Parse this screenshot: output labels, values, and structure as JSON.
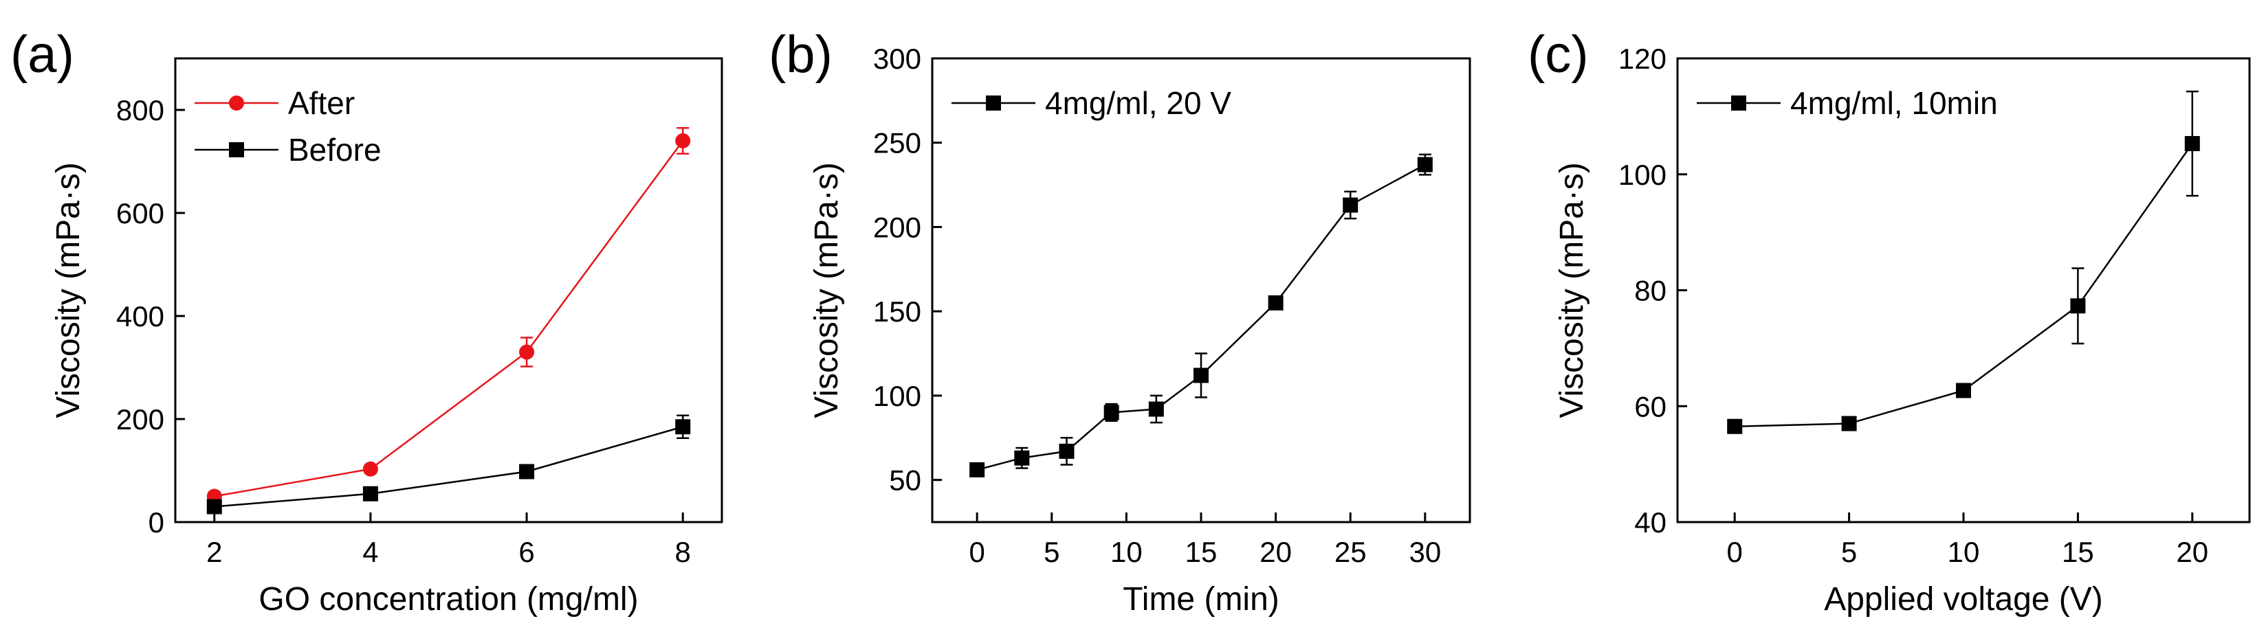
{
  "chart_data": [
    {
      "panel": "(a)",
      "type": "line",
      "xlabel": "GO concentration (mg/ml)",
      "ylabel": "Viscosity (mPa·s)",
      "xlim": [
        1.5,
        8.5
      ],
      "ylim": [
        0,
        900
      ],
      "xticks": [
        2,
        4,
        6,
        8
      ],
      "yticks": [
        0,
        200,
        400,
        600,
        800
      ],
      "x": [
        2,
        4,
        6,
        8
      ],
      "series": [
        {
          "name": "After",
          "color": "#e8141a",
          "marker": "circle",
          "values": [
            50,
            103,
            330,
            740
          ],
          "errors": [
            8,
            8,
            28,
            25
          ]
        },
        {
          "name": "Before",
          "color": "#000000",
          "marker": "square",
          "values": [
            30,
            55,
            98,
            185
          ],
          "errors": [
            5,
            5,
            10,
            22
          ]
        }
      ],
      "legend": "top-left"
    },
    {
      "panel": "(b)",
      "type": "line",
      "xlabel": "Time (min)",
      "ylabel": "Viscosity (mPa·s)",
      "xlim": [
        -3,
        33
      ],
      "ylim": [
        25,
        300
      ],
      "xticks": [
        0,
        5,
        10,
        15,
        20,
        25,
        30
      ],
      "yticks": [
        50,
        100,
        150,
        200,
        250,
        300
      ],
      "x": [
        0,
        3,
        6,
        9,
        12,
        15,
        20,
        25,
        30
      ],
      "series": [
        {
          "name": "4mg/ml, 20 V",
          "color": "#000000",
          "marker": "square",
          "values": [
            56,
            63,
            67,
            90,
            92,
            112,
            155,
            213,
            237
          ],
          "errors": [
            3,
            6,
            8,
            5,
            8,
            13,
            3,
            8,
            6
          ]
        }
      ],
      "legend": "top-left"
    },
    {
      "panel": "(c)",
      "type": "line",
      "xlabel": "Applied voltage (V)",
      "ylabel": "Viscosity (mPa·s)",
      "xlim": [
        -2.5,
        22.5
      ],
      "ylim": [
        40,
        120
      ],
      "xticks": [
        0,
        5,
        10,
        15,
        20
      ],
      "yticks": [
        40,
        60,
        80,
        100,
        120
      ],
      "x": [
        0,
        5,
        10,
        15,
        20
      ],
      "series": [
        {
          "name": "4mg/ml, 10min",
          "color": "#000000",
          "marker": "square",
          "values": [
            56.5,
            57,
            62.7,
            77.3,
            105.3
          ],
          "errors": [
            0.8,
            0.8,
            0.8,
            6.5,
            9
          ]
        }
      ],
      "legend": "top-left"
    }
  ]
}
